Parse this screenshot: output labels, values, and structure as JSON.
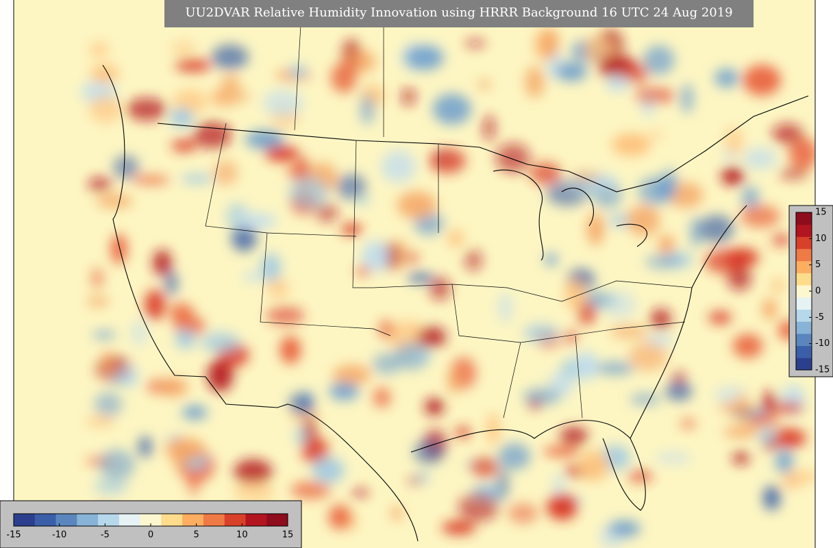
{
  "title": "UU2DVAR Relative Humidity Innovation using HRRR Background 16 UTC 24 Aug 2019",
  "colors": [
    "#2c3f8f",
    "#3b5ea8",
    "#5a86bd",
    "#86b3d6",
    "#b7d8ea",
    "#e6f2f3",
    "#fdf7d0",
    "#fddc8c",
    "#fdae61",
    "#f07a46",
    "#d9402a",
    "#b2151f",
    "#8e0c1c"
  ],
  "colorbars": [
    {
      "orientation": "horizontal",
      "lim": [
        -15,
        15
      ],
      "ticks": [
        -15,
        -10,
        -5,
        0,
        5,
        10,
        15
      ]
    },
    {
      "orientation": "vertical",
      "lim": [
        -15,
        15
      ],
      "ticks": [
        15,
        10,
        5,
        0,
        -5,
        -10,
        -15
      ]
    }
  ]
}
